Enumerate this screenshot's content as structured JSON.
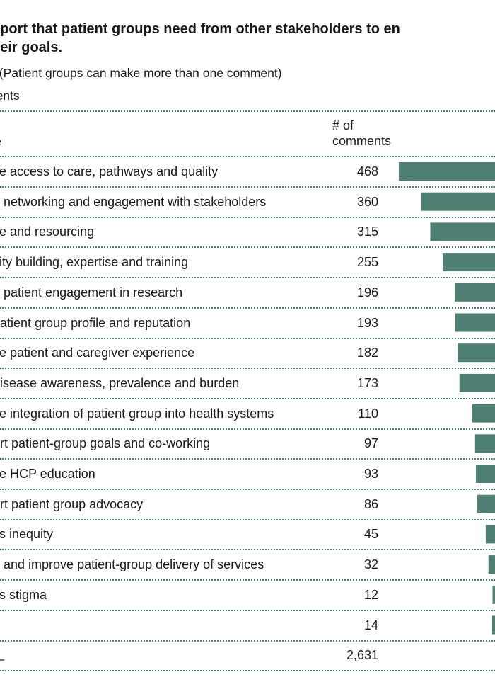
{
  "title_lines": [
    "pport that patient groups need from other stakeholders to en",
    "heir goals."
  ],
  "subtitle": "gh to low. (Patient groups can make more than one comment)",
  "subtitle2": "ments",
  "header": {
    "left": "e",
    "count_line1": "# of",
    "count_line2": "comments"
  },
  "colors": {
    "bar": "#4e7f72",
    "dots": "#4e7f72"
  },
  "chart_data": {
    "type": "bar",
    "orientation": "horizontal",
    "categories": [
      "ve access to care, pathways and quality",
      "e networking and engagement with stakeholders",
      "ce and resourcing",
      "city building, expertise and training",
      "e patient engagement in research",
      "patient group profile and reputation",
      "ve patient and caregiver experience",
      "disease awareness, prevalence and burden",
      "ve integration of patient group into health systems",
      "ort patient-group goals and co-working",
      "ve HCP education",
      "ort patient group advocacy",
      "ss inequity",
      "e and improve patient-group delivery of services",
      "ss stigma",
      ""
    ],
    "values": [
      468,
      360,
      315,
      255,
      196,
      193,
      182,
      173,
      110,
      97,
      93,
      86,
      45,
      32,
      12,
      14
    ],
    "value_labels": [
      "468",
      "360",
      "315",
      "255",
      "196",
      "193",
      "182",
      "173",
      "110",
      "97",
      "93",
      "86",
      "45",
      "32",
      "12",
      "14"
    ],
    "total_label": "_",
    "total_value": "2,631"
  }
}
